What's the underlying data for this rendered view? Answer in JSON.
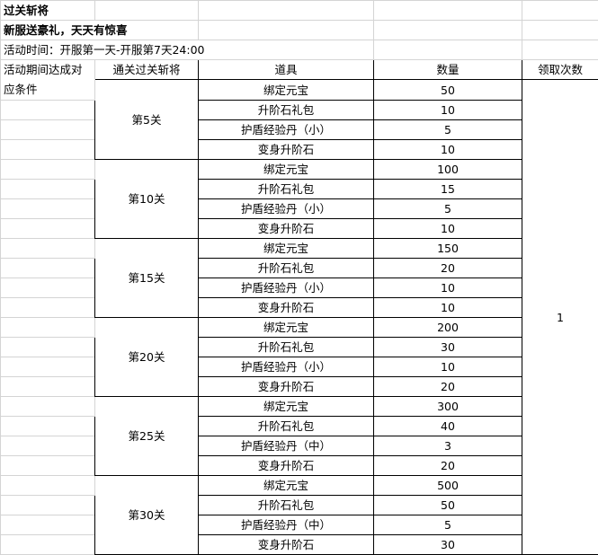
{
  "sheet": {
    "title": "过关斩将",
    "subtitle": "新服送豪礼，天天有惊喜",
    "time": "活动时间：开服第一天-开服第7天24:00",
    "condition": "活动期间达成对应条件",
    "headers": [
      "通关过关斩将",
      "道具",
      "数量",
      "领取次数"
    ],
    "claim_count": "1",
    "groups": [
      {
        "level": "第5关",
        "items": [
          [
            "绑定元宝",
            "50"
          ],
          [
            "升阶石礼包",
            "10"
          ],
          [
            "护盾经验丹（小）",
            "5"
          ],
          [
            "变身升阶石",
            "10"
          ]
        ]
      },
      {
        "level": "第10关",
        "items": [
          [
            "绑定元宝",
            "100"
          ],
          [
            "升阶石礼包",
            "15"
          ],
          [
            "护盾经验丹（小）",
            "5"
          ],
          [
            "变身升阶石",
            "10"
          ]
        ]
      },
      {
        "level": "第15关",
        "items": [
          [
            "绑定元宝",
            "150"
          ],
          [
            "升阶石礼包",
            "20"
          ],
          [
            "护盾经验丹（小）",
            "10"
          ],
          [
            "变身升阶石",
            "10"
          ]
        ]
      },
      {
        "level": "第20关",
        "items": [
          [
            "绑定元宝",
            "200"
          ],
          [
            "升阶石礼包",
            "30"
          ],
          [
            "护盾经验丹（小）",
            "10"
          ],
          [
            "变身升阶石",
            "20"
          ]
        ]
      },
      {
        "level": "第25关",
        "items": [
          [
            "绑定元宝",
            "300"
          ],
          [
            "升阶石礼包",
            "40"
          ],
          [
            "护盾经验丹（中）",
            "3"
          ],
          [
            "变身升阶石",
            "20"
          ]
        ]
      },
      {
        "level": "第30关",
        "items": [
          [
            "绑定元宝",
            "500"
          ],
          [
            "升阶石礼包",
            "50"
          ],
          [
            "护盾经验丹（中）",
            "5"
          ],
          [
            "变身升阶石",
            "30"
          ]
        ]
      }
    ]
  }
}
